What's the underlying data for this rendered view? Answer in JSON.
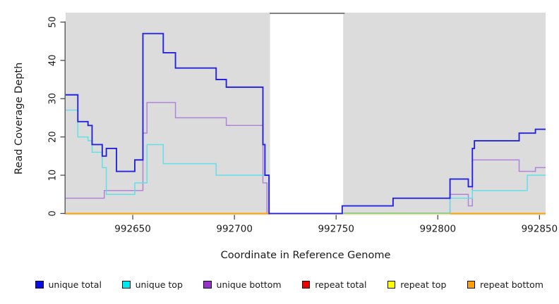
{
  "chart_data": {
    "type": "line",
    "subtype": "step-coverage-plot",
    "title": "",
    "xlabel": "Coordinate in Reference Genome",
    "ylabel": "Read Coverage Depth",
    "xlim": [
      992617,
      992853
    ],
    "ylim": [
      0,
      52.5
    ],
    "x_ticks": [
      992650,
      992700,
      992750,
      992800,
      992850
    ],
    "x_tick_labels": [
      "992650",
      "992700",
      "992750",
      "992800",
      "992850"
    ],
    "y_ticks": [
      0,
      10,
      20,
      30,
      40,
      50
    ],
    "y_tick_labels": [
      "0",
      "10",
      "20",
      "30",
      "40",
      "50"
    ],
    "grid": "off",
    "plot_bg": "#DCDCDC",
    "axis_color": "#4A4A4A",
    "text_color": "#1a1a1a",
    "masked_region": {
      "start": 992717.5,
      "end": 992753.5,
      "fill": "#FFFFFF",
      "border_top_color": "#707070"
    },
    "zero_overlap_artifact": {
      "start": 992753.5,
      "end": 992806,
      "top_color": "#8CCF8C",
      "under_color": "#E9E4BC"
    },
    "series": [
      {
        "name": "unique total",
        "color": "#2424DE",
        "swatch": "#0B0BE8",
        "width": 1.9,
        "points": [
          [
            992617,
            31
          ],
          [
            992623,
            24
          ],
          [
            992628,
            23
          ],
          [
            992630,
            18
          ],
          [
            992635,
            15
          ],
          [
            992637,
            17
          ],
          [
            992642,
            11
          ],
          [
            992651,
            14
          ],
          [
            992655,
            47
          ],
          [
            992665,
            42
          ],
          [
            992671,
            38
          ],
          [
            992691,
            35
          ],
          [
            992696,
            33
          ],
          [
            992714,
            18
          ],
          [
            992715,
            10
          ],
          [
            992717,
            0
          ],
          [
            992753,
            2
          ],
          [
            992778,
            4
          ],
          [
            992806,
            9
          ],
          [
            992815,
            7
          ],
          [
            992817,
            17
          ],
          [
            992818,
            19
          ],
          [
            992840,
            21
          ],
          [
            992848,
            22
          ],
          [
            992853,
            22
          ]
        ]
      },
      {
        "name": "unique top",
        "color": "#63DFE8",
        "swatch": "#00E8F0",
        "width": 1.5,
        "points": [
          [
            992617,
            27
          ],
          [
            992623,
            20
          ],
          [
            992628,
            19
          ],
          [
            992630,
            16
          ],
          [
            992635,
            12
          ],
          [
            992637,
            5
          ],
          [
            992651,
            8
          ],
          [
            992657,
            18
          ],
          [
            992665,
            13
          ],
          [
            992691,
            10
          ],
          [
            992717,
            0
          ],
          [
            992806,
            4
          ],
          [
            992817,
            6
          ],
          [
            992844,
            10
          ],
          [
            992853,
            10
          ]
        ]
      },
      {
        "name": "unique bottom",
        "color": "#B183D9",
        "swatch": "#9932CC",
        "width": 1.5,
        "points": [
          [
            992617,
            4
          ],
          [
            992636,
            6
          ],
          [
            992655,
            21
          ],
          [
            992657,
            29
          ],
          [
            992671,
            25
          ],
          [
            992696,
            23
          ],
          [
            992714,
            8
          ],
          [
            992716,
            0
          ],
          [
            992806,
            5
          ],
          [
            992815,
            2
          ],
          [
            992817,
            14
          ],
          [
            992840,
            11
          ],
          [
            992848,
            12
          ],
          [
            992853,
            12
          ]
        ]
      },
      {
        "name": "repeat total",
        "color": "#EE0000",
        "swatch": "#EE0000",
        "width": 1.7,
        "points": [
          [
            992617,
            0
          ],
          [
            992853,
            0
          ]
        ]
      },
      {
        "name": "repeat top",
        "color": "#FFFF00",
        "swatch": "#FFFF00",
        "width": 1.7,
        "points": [
          [
            992617,
            0
          ],
          [
            992853,
            0
          ]
        ]
      },
      {
        "name": "repeat bottom",
        "color": "#FFA500",
        "swatch": "#FFA000",
        "width": 1.8,
        "points": [
          [
            992617,
            0
          ],
          [
            992853,
            0
          ]
        ]
      }
    ],
    "draw_order": [
      "unique bottom",
      "unique top",
      "repeat total",
      "repeat top",
      "repeat bottom",
      "__artifact__",
      "unique total"
    ]
  },
  "legend": {
    "items": [
      {
        "label": "unique total",
        "color": "#0B0BE8"
      },
      {
        "label": "unique top",
        "color": "#00E8F0"
      },
      {
        "label": "unique bottom",
        "color": "#9932CC"
      },
      {
        "label": "repeat total",
        "color": "#EE0000"
      },
      {
        "label": "repeat top",
        "color": "#FFFF00"
      },
      {
        "label": "repeat bottom",
        "color": "#FFA000"
      }
    ]
  }
}
